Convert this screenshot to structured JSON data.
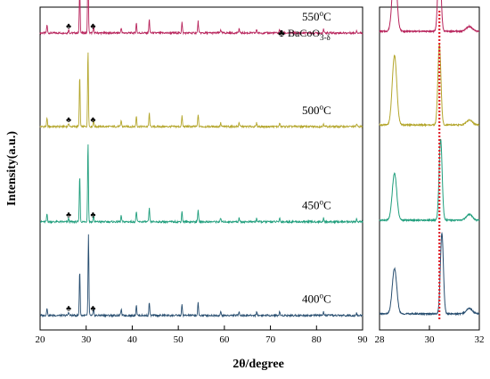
{
  "chart_data": {
    "type": "line",
    "xlabel": "2θ/degree",
    "ylabel": "Intensity(a.u.)",
    "panels": [
      {
        "name": "main",
        "xlim": [
          20,
          90
        ],
        "xticks": [
          20,
          30,
          40,
          50,
          60,
          70,
          80,
          90
        ]
      },
      {
        "name": "zoom",
        "xlim": [
          28,
          32
        ],
        "xticks": [
          28,
          30,
          32
        ]
      }
    ],
    "reference_line": {
      "x": 30.4,
      "color": "#e0202a",
      "style": "dotted"
    },
    "legend": {
      "symbol": "♣",
      "base": "BaCoO",
      "sub": "3-δ"
    },
    "series": [
      {
        "temp_value": "550",
        "temp_unit": "C",
        "color": "#b8245c",
        "baseline": 0.92,
        "peaks_main": [
          [
            21.5,
            0.09
          ],
          [
            26.2,
            0.04
          ],
          [
            28.6,
            0.52
          ],
          [
            30.4,
            0.82
          ],
          [
            31.6,
            0.07
          ],
          [
            37.6,
            0.06
          ],
          [
            40.9,
            0.11
          ],
          [
            43.7,
            0.15
          ],
          [
            50.8,
            0.12
          ],
          [
            54.3,
            0.13
          ],
          [
            59.2,
            0.04
          ],
          [
            63.2,
            0.05
          ],
          [
            67.0,
            0.04
          ],
          [
            72.0,
            0.04
          ],
          [
            81.5,
            0.04
          ],
          [
            88.7,
            0.03
          ]
        ],
        "peaks_zoom": [
          [
            28.6,
            0.82,
            0.09
          ],
          [
            30.4,
            1.0,
            0.06
          ],
          [
            31.6,
            0.06,
            0.12
          ]
        ],
        "markers": [
          26.2,
          31.5
        ]
      },
      {
        "temp_value": "500",
        "temp_unit": "C",
        "color": "#b4a62c",
        "baseline": 0.63,
        "peaks_main": [
          [
            21.5,
            0.09
          ],
          [
            26.2,
            0.04
          ],
          [
            28.6,
            0.56
          ],
          [
            30.4,
            0.85
          ],
          [
            31.6,
            0.07
          ],
          [
            37.6,
            0.07
          ],
          [
            40.9,
            0.12
          ],
          [
            43.7,
            0.15
          ],
          [
            50.8,
            0.12
          ],
          [
            54.3,
            0.14
          ],
          [
            59.2,
            0.04
          ],
          [
            63.2,
            0.05
          ],
          [
            67.0,
            0.04
          ],
          [
            72.0,
            0.04
          ],
          [
            81.5,
            0.04
          ],
          [
            88.7,
            0.03
          ]
        ],
        "peaks_zoom": [
          [
            28.6,
            0.86,
            0.09
          ],
          [
            30.4,
            1.0,
            0.06
          ],
          [
            31.6,
            0.06,
            0.12
          ]
        ],
        "markers": [
          26.2,
          31.5
        ]
      },
      {
        "temp_value": "450",
        "temp_unit": "C",
        "color": "#1f9e7c",
        "baseline": 0.335,
        "peaks_main": [
          [
            21.5,
            0.09
          ],
          [
            26.2,
            0.04
          ],
          [
            28.6,
            0.52
          ],
          [
            30.4,
            0.88
          ],
          [
            31.6,
            0.07
          ],
          [
            37.6,
            0.07
          ],
          [
            40.9,
            0.12
          ],
          [
            43.7,
            0.15
          ],
          [
            50.8,
            0.12
          ],
          [
            54.3,
            0.14
          ],
          [
            59.2,
            0.04
          ],
          [
            63.2,
            0.05
          ],
          [
            67.0,
            0.04
          ],
          [
            72.0,
            0.04
          ],
          [
            81.5,
            0.04
          ],
          [
            88.7,
            0.03
          ]
        ],
        "peaks_zoom": [
          [
            28.6,
            0.58,
            0.09
          ],
          [
            30.45,
            1.0,
            0.06
          ],
          [
            31.6,
            0.07,
            0.12
          ]
        ],
        "markers": [
          26.2,
          31.5
        ]
      },
      {
        "temp_value": "400",
        "temp_unit": "C",
        "color": "#284e70",
        "baseline": 0.045,
        "peaks_main": [
          [
            21.5,
            0.09
          ],
          [
            26.2,
            0.04
          ],
          [
            28.6,
            0.5
          ],
          [
            30.5,
            0.9
          ],
          [
            31.6,
            0.07
          ],
          [
            37.6,
            0.07
          ],
          [
            40.9,
            0.12
          ],
          [
            43.7,
            0.15
          ],
          [
            50.8,
            0.12
          ],
          [
            54.3,
            0.14
          ],
          [
            59.2,
            0.04
          ],
          [
            63.2,
            0.05
          ],
          [
            67.0,
            0.04
          ],
          [
            72.0,
            0.04
          ],
          [
            81.5,
            0.04
          ],
          [
            88.7,
            0.03
          ]
        ],
        "peaks_zoom": [
          [
            28.6,
            0.56,
            0.09
          ],
          [
            30.5,
            1.0,
            0.06
          ],
          [
            31.6,
            0.07,
            0.12
          ]
        ],
        "markers": [
          26.2,
          31.5
        ]
      }
    ]
  }
}
